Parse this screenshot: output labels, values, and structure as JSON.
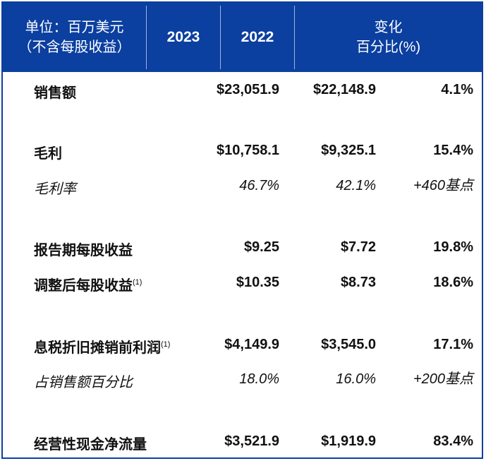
{
  "header": {
    "unit_line1": "单位：百万美元",
    "unit_line2": "（不含每股收益）",
    "col_2023": "2023",
    "col_2022": "2022",
    "change_line1": "变化",
    "change_line2": "百分比(%)"
  },
  "colors": {
    "header_bg": "#0b3fa0"
  },
  "rows": [
    {
      "label": "销售额",
      "note": "",
      "v2023": "$23,051.9",
      "v2022": "$22,148.9",
      "change": "4.1%"
    },
    {
      "label": "毛利",
      "note": "",
      "v2023": "$10,758.1",
      "v2022": "$9,325.1",
      "change": "15.4%"
    },
    {
      "label": "毛利率",
      "note": "",
      "v2023": "46.7%",
      "v2022": "42.1%",
      "change": "+460基点"
    },
    {
      "label": "报告期每股收益",
      "note": "",
      "v2023": "$9.25",
      "v2022": "$7.72",
      "change": "19.8%"
    },
    {
      "label": "调整后每股收益",
      "note": "(1)",
      "v2023": "$10.35",
      "v2022": "$8.73",
      "change": "18.6%"
    },
    {
      "label": "息税折旧摊销前利润",
      "note": "(1)",
      "v2023": "$4,149.9",
      "v2022": "$3,545.0",
      "change": "17.1%"
    },
    {
      "label": "占销售额百分比",
      "note": "",
      "v2023": "18.0%",
      "v2022": "16.0%",
      "change": "+200基点"
    },
    {
      "label": "经营性现金净流量",
      "note": "",
      "v2023": "$3,521.9",
      "v2022": "$1,919.9",
      "change": "83.4%"
    }
  ]
}
